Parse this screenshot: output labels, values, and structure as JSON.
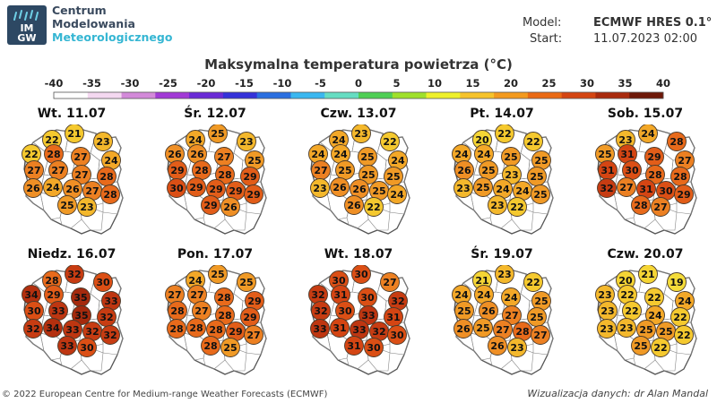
{
  "header": {
    "brand": [
      "Centrum",
      "Modelowania",
      "Meteorologicznego"
    ],
    "logo_text": [
      "IM",
      "GW"
    ],
    "model_label": "Model:",
    "model_value": "ECMWF HRES 0.1°",
    "start_label": "Start:",
    "start_value": "11.07.2023 02:00"
  },
  "title": "Maksymalna temperatura powietrza (°C)",
  "scale": {
    "ticks": [
      "-40",
      "-35",
      "-30",
      "-25",
      "-20",
      "-15",
      "-10",
      "-5",
      "0",
      "5",
      "10",
      "15",
      "20",
      "25",
      "30",
      "35",
      "40"
    ],
    "colors": [
      "#ffffff",
      "#f4d8f0",
      "#d38ad9",
      "#a23ad6",
      "#6a2bd6",
      "#3532d9",
      "#2b6fe0",
      "#3ab7f0",
      "#66ddc2",
      "#4fcf55",
      "#9fe02a",
      "#eef02a",
      "#f6c32a",
      "#f39a1e",
      "#ea6a14",
      "#d44512",
      "#a92a0d",
      "#6e1808"
    ]
  },
  "days": [
    {
      "label": "Wt. 11.07",
      "temps": [
        "22",
        "21",
        "23",
        "22",
        "28",
        "27",
        "24",
        "27",
        "27",
        "27",
        "28",
        "26",
        "24",
        "26",
        "27",
        "28",
        "25",
        "23"
      ],
      "colors": [
        "#f5c92f",
        "#f5c92f",
        "#f4b82c",
        "#f5c92f",
        "#e86a1b",
        "#ec8022",
        "#f3a828",
        "#ec8022",
        "#ec8022",
        "#ec8022",
        "#e86a1b",
        "#ef8f25",
        "#f3a828",
        "#ef8f25",
        "#ec8022",
        "#e86a1b",
        "#f09a26",
        "#f4b82c"
      ]
    },
    {
      "label": "Śr. 12.07",
      "temps": [
        "24",
        "25",
        "23",
        "26",
        "26",
        "27",
        "25",
        "29",
        "28",
        "28",
        "29",
        "30",
        "29",
        "29",
        "29",
        "29",
        "29",
        "26"
      ],
      "colors": [
        "#f3a828",
        "#f09a26",
        "#f4b82c",
        "#ef8f25",
        "#ef8f25",
        "#ec8022",
        "#f09a26",
        "#e25d19",
        "#e86a1b",
        "#e86a1b",
        "#e25d19",
        "#db4f15",
        "#e25d19",
        "#e25d19",
        "#e25d19",
        "#e25d19",
        "#e25d19",
        "#ef8f25"
      ]
    },
    {
      "label": "Czw. 13.07",
      "temps": [
        "24",
        "23",
        "22",
        "24",
        "24",
        "25",
        "24",
        "27",
        "25",
        "25",
        "25",
        "23",
        "26",
        "26",
        "25",
        "24",
        "26",
        "22"
      ],
      "colors": [
        "#f3a828",
        "#f4b82c",
        "#f5c92f",
        "#f3a828",
        "#f3a828",
        "#f09a26",
        "#f3a828",
        "#ec8022",
        "#f09a26",
        "#f09a26",
        "#f09a26",
        "#f4b82c",
        "#ef8f25",
        "#ef8f25",
        "#f09a26",
        "#f3a828",
        "#ef8f25",
        "#f5c92f"
      ]
    },
    {
      "label": "Pt. 14.07",
      "temps": [
        "20",
        "22",
        "22",
        "24",
        "24",
        "25",
        "25",
        "26",
        "25",
        "23",
        "25",
        "23",
        "25",
        "24",
        "24",
        "25",
        "23",
        "22"
      ],
      "colors": [
        "#f5d535",
        "#f5c92f",
        "#f5c92f",
        "#f3a828",
        "#f3a828",
        "#f09a26",
        "#f09a26",
        "#ef8f25",
        "#f09a26",
        "#f4b82c",
        "#f09a26",
        "#f4b82c",
        "#f09a26",
        "#f3a828",
        "#f3a828",
        "#f09a26",
        "#f4b82c",
        "#f5c92f"
      ]
    },
    {
      "label": "Sob. 15.07",
      "temps": [
        "23",
        "24",
        "28",
        "25",
        "31",
        "29",
        "27",
        "31",
        "30",
        "28",
        "28",
        "32",
        "27",
        "31",
        "30",
        "29",
        "28",
        "27"
      ],
      "colors": [
        "#f4b82c",
        "#f3a828",
        "#e86a1b",
        "#f09a26",
        "#d44513",
        "#e25d19",
        "#ec8022",
        "#d44513",
        "#db4f15",
        "#e86a1b",
        "#e86a1b",
        "#c73c12",
        "#ec8022",
        "#d44513",
        "#db4f15",
        "#e25d19",
        "#e86a1b",
        "#ec8022"
      ]
    },
    {
      "label": "Niedz. 16.07",
      "temps": [
        "28",
        "32",
        "30",
        "34",
        "29",
        "35",
        "33",
        "30",
        "33",
        "35",
        "32",
        "32",
        "34",
        "33",
        "32",
        "32",
        "33",
        "30"
      ],
      "colors": [
        "#e86a1b",
        "#c73c12",
        "#db4f15",
        "#b3300f",
        "#e25d19",
        "#a52a0d",
        "#be3611",
        "#db4f15",
        "#be3611",
        "#a52a0d",
        "#c73c12",
        "#c73c12",
        "#b3300f",
        "#be3611",
        "#c73c12",
        "#c73c12",
        "#be3611",
        "#db4f15"
      ]
    },
    {
      "label": "Pon. 17.07",
      "temps": [
        "24",
        "25",
        "25",
        "27",
        "27",
        "28",
        "29",
        "28",
        "27",
        "28",
        "29",
        "28",
        "28",
        "28",
        "29",
        "27",
        "28",
        "25"
      ],
      "colors": [
        "#f3a828",
        "#f09a26",
        "#f09a26",
        "#ec8022",
        "#ec8022",
        "#e86a1b",
        "#e25d19",
        "#e86a1b",
        "#ec8022",
        "#e86a1b",
        "#e25d19",
        "#e86a1b",
        "#e86a1b",
        "#e86a1b",
        "#e25d19",
        "#ec8022",
        "#e86a1b",
        "#f09a26"
      ]
    },
    {
      "label": "Wt. 18.07",
      "temps": [
        "30",
        "30",
        "27",
        "32",
        "31",
        "30",
        "32",
        "32",
        "30",
        "33",
        "31",
        "33",
        "31",
        "33",
        "32",
        "30",
        "31",
        "30"
      ],
      "colors": [
        "#db4f15",
        "#db4f15",
        "#ec8022",
        "#c73c12",
        "#d44513",
        "#db4f15",
        "#c73c12",
        "#c73c12",
        "#db4f15",
        "#be3611",
        "#d44513",
        "#be3611",
        "#d44513",
        "#be3611",
        "#c73c12",
        "#db4f15",
        "#d44513",
        "#db4f15"
      ]
    },
    {
      "label": "Śr. 19.07",
      "temps": [
        "21",
        "23",
        "22",
        "24",
        "24",
        "24",
        "25",
        "25",
        "26",
        "27",
        "25",
        "26",
        "25",
        "27",
        "28",
        "27",
        "26",
        "23"
      ],
      "colors": [
        "#f5d535",
        "#f4b82c",
        "#f5c92f",
        "#f3a828",
        "#f3a828",
        "#f3a828",
        "#f09a26",
        "#f09a26",
        "#ef8f25",
        "#ec8022",
        "#f09a26",
        "#ef8f25",
        "#f09a26",
        "#ec8022",
        "#e86a1b",
        "#ec8022",
        "#ef8f25",
        "#f4b82c"
      ]
    },
    {
      "label": "Czw. 20.07",
      "temps": [
        "20",
        "21",
        "19",
        "23",
        "22",
        "22",
        "24",
        "23",
        "22",
        "24",
        "22",
        "23",
        "23",
        "25",
        "25",
        "22",
        "25",
        "22"
      ],
      "colors": [
        "#f5d535",
        "#f5d535",
        "#f4dc3a",
        "#f4b82c",
        "#f5c92f",
        "#f5c92f",
        "#f3a828",
        "#f4b82c",
        "#f5c92f",
        "#f3a828",
        "#f5c92f",
        "#f4b82c",
        "#f4b82c",
        "#f09a26",
        "#f09a26",
        "#f5c92f",
        "#f09a26",
        "#f5c92f"
      ]
    }
  ],
  "footer": {
    "copyright": "© 2022 European Centre for Medium-range Weather Forecasts (ECMWF)",
    "credit": "Wizualizacja danych: dr Alan Mandal"
  }
}
